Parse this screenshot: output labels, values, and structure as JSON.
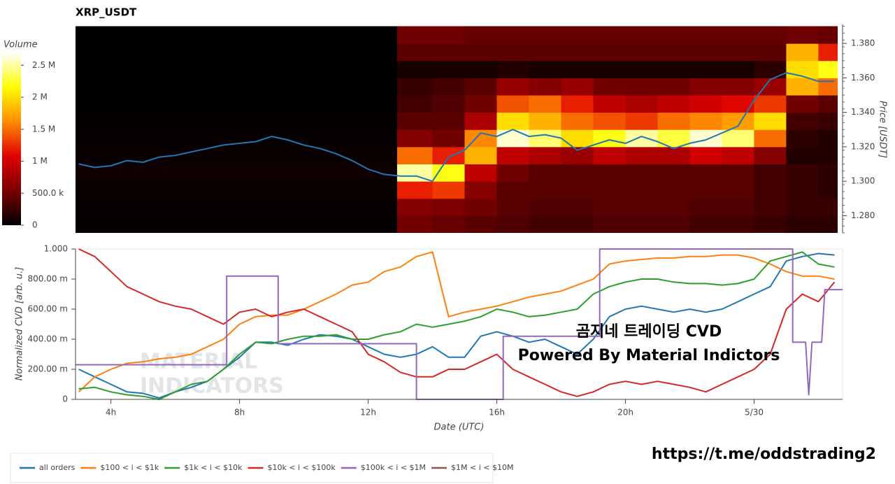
{
  "chart_data": [
    {
      "type": "heatmap",
      "title": "XRP_USDT",
      "y_label": "Price [USDT]",
      "xlim": [
        2.9,
        26.6
      ],
      "ylim": [
        1.27,
        1.391
      ],
      "yticks": [
        {
          "value": 1.28,
          "label": "1.280"
        },
        {
          "value": 1.3,
          "label": "1.300"
        },
        {
          "value": 1.32,
          "label": "1.320"
        },
        {
          "value": 1.34,
          "label": "1.340"
        },
        {
          "value": 1.36,
          "label": "1.360"
        },
        {
          "value": 1.38,
          "label": "1.380"
        }
      ],
      "x_edges": [
        2.9,
        12.9,
        14,
        15,
        16,
        17,
        18,
        19,
        20,
        21,
        22,
        23,
        24,
        25,
        26,
        26.6
      ],
      "y_edges": [
        1.27,
        1.28,
        1.29,
        1.3,
        1.31,
        1.32,
        1.33,
        1.34,
        1.35,
        1.36,
        1.37,
        1.38,
        1.39
      ],
      "z": [
        [
          20000,
          500000,
          450000,
          400000,
          350000,
          300000,
          300000,
          350000,
          350000,
          350000,
          300000,
          300000,
          250000,
          200000,
          200000
        ],
        [
          30000,
          600000,
          550000,
          500000,
          400000,
          350000,
          350000,
          400000,
          400000,
          400000,
          350000,
          350000,
          300000,
          250000,
          250000
        ],
        [
          40000,
          1200000,
          1300000,
          600000,
          400000,
          400000,
          400000,
          400000,
          400000,
          400000,
          400000,
          400000,
          300000,
          250000,
          200000
        ],
        [
          60000,
          2500000,
          2200000,
          900000,
          500000,
          400000,
          400000,
          400000,
          400000,
          400000,
          400000,
          400000,
          300000,
          250000,
          200000
        ],
        [
          50000,
          1500000,
          1200000,
          1800000,
          900000,
          800000,
          700000,
          900000,
          800000,
          800000,
          1000000,
          900000,
          600000,
          150000,
          150000
        ],
        [
          30000,
          600000,
          500000,
          1600000,
          2600000,
          2400000,
          2000000,
          2200000,
          2500000,
          2300000,
          2600000,
          2400000,
          1500000,
          200000,
          150000
        ],
        [
          20000,
          400000,
          400000,
          800000,
          2000000,
          1800000,
          1500000,
          1400000,
          1300000,
          1500000,
          1600000,
          1700000,
          2000000,
          300000,
          250000
        ],
        [
          10000,
          300000,
          350000,
          500000,
          1400000,
          1500000,
          1200000,
          900000,
          800000,
          900000,
          1000000,
          1100000,
          1300000,
          500000,
          400000
        ],
        [
          10000,
          250000,
          300000,
          400000,
          700000,
          600000,
          700000,
          500000,
          500000,
          500000,
          600000,
          600000,
          700000,
          1800000,
          1500000
        ],
        [
          10000,
          100000,
          100000,
          100000,
          150000,
          100000,
          100000,
          100000,
          100000,
          100000,
          100000,
          100000,
          200000,
          2000000,
          2200000
        ],
        [
          10000,
          400000,
          400000,
          400000,
          400000,
          400000,
          400000,
          400000,
          400000,
          400000,
          400000,
          400000,
          400000,
          1800000,
          1200000
        ],
        [
          10000,
          500000,
          500000,
          450000,
          450000,
          450000,
          450000,
          450000,
          450000,
          450000,
          450000,
          450000,
          450000,
          500000,
          450000
        ]
      ],
      "colorbar": {
        "title": "Volume",
        "lim": [
          0,
          2700000
        ],
        "colors": [
          "#000000",
          "#7a0000",
          "#e00000",
          "#ff8c00",
          "#ffff00",
          "#ffffff"
        ],
        "ticks": [
          0,
          {
            "value": 500000,
            "label": "500.0 k"
          },
          {
            "value": 1000000,
            "label": "1 M"
          },
          {
            "value": 1500000,
            "label": "1.5 M"
          },
          {
            "value": 2000000,
            "label": "2 M"
          },
          {
            "value": 2500000,
            "label": "2.5 M"
          }
        ]
      },
      "x": [
        3,
        3.5,
        4,
        4.5,
        5,
        5.5,
        6,
        6.5,
        7,
        7.5,
        8,
        8.5,
        9,
        9.5,
        10,
        10.5,
        11,
        11.5,
        12,
        12.5,
        13,
        13.5,
        14,
        14.5,
        15,
        15.5,
        16,
        16.5,
        17,
        17.5,
        18,
        18.5,
        19,
        19.5,
        20,
        20.5,
        21,
        21.5,
        22,
        22.5,
        23,
        23.5,
        24,
        24.5,
        25,
        25.5,
        26,
        26.5
      ],
      "price": {
        "color": "#1f77b4",
        "values": [
          1.31,
          1.308,
          1.309,
          1.312,
          1.311,
          1.314,
          1.315,
          1.317,
          1.319,
          1.321,
          1.322,
          1.323,
          1.326,
          1.324,
          1.321,
          1.319,
          1.316,
          1.312,
          1.307,
          1.304,
          1.303,
          1.303,
          1.3,
          1.314,
          1.318,
          1.328,
          1.326,
          1.33,
          1.326,
          1.327,
          1.325,
          1.318,
          1.321,
          1.324,
          1.322,
          1.326,
          1.323,
          1.319,
          1.322,
          1.324,
          1.328,
          1.332,
          1.347,
          1.359,
          1.363,
          1.361,
          1.358,
          1.358
        ]
      }
    },
    {
      "type": "line",
      "x_label": "Date (UTC)",
      "y_label": "Normalized CVD [arb. u.]",
      "xlim": [
        2.9,
        26.75
      ],
      "ylim": [
        0,
        1
      ],
      "xticks": [
        {
          "value": 4,
          "label": "4h"
        },
        {
          "value": 8,
          "label": "8h"
        },
        {
          "value": 12,
          "label": "12h"
        },
        {
          "value": 16,
          "label": "16h"
        },
        {
          "value": 20,
          "label": "20h"
        },
        {
          "value": 24,
          "label": "5/30"
        }
      ],
      "yticks": [
        0,
        {
          "value": 0.2,
          "label": "200.00 m"
        },
        {
          "value": 0.4,
          "label": "400.00 m"
        },
        {
          "value": 0.6,
          "label": "600.00 m"
        },
        {
          "value": 0.8,
          "label": "800.00 m"
        },
        {
          "value": 1,
          "label": "1.000"
        }
      ],
      "x": [
        3,
        3.5,
        4,
        4.5,
        5,
        5.5,
        6,
        6.5,
        7,
        7.5,
        8,
        8.5,
        9,
        9.5,
        10,
        10.5,
        11,
        11.5,
        12,
        12.5,
        13,
        13.5,
        14,
        14.5,
        15,
        15.5,
        16,
        16.5,
        17,
        17.5,
        18,
        18.5,
        19,
        19.5,
        20,
        20.5,
        21,
        21.5,
        22,
        22.5,
        23,
        23.5,
        24,
        24.5,
        25,
        25.5,
        26,
        26.5
      ],
      "legend": "bottom",
      "series": [
        {
          "name": "all orders",
          "color": "#1f77b4",
          "values": [
            0.2,
            0.15,
            0.1,
            0.05,
            0.04,
            0.01,
            0.05,
            0.08,
            0.12,
            0.2,
            0.28,
            0.38,
            0.38,
            0.36,
            0.4,
            0.43,
            0.42,
            0.4,
            0.35,
            0.3,
            0.28,
            0.3,
            0.35,
            0.28,
            0.28,
            0.42,
            0.45,
            0.42,
            0.38,
            0.4,
            0.35,
            0.3,
            0.4,
            0.55,
            0.6,
            0.62,
            0.6,
            0.58,
            0.6,
            0.58,
            0.6,
            0.65,
            0.7,
            0.75,
            0.92,
            0.95,
            0.97,
            0.96
          ]
        },
        {
          "name": "$100 < i < $1k",
          "color": "#ff7f0e",
          "values": [
            0.05,
            0.15,
            0.2,
            0.24,
            0.25,
            0.27,
            0.28,
            0.3,
            0.35,
            0.4,
            0.5,
            0.55,
            0.56,
            0.56,
            0.6,
            0.65,
            0.7,
            0.76,
            0.78,
            0.85,
            0.88,
            0.95,
            0.98,
            0.55,
            0.58,
            0.6,
            0.62,
            0.65,
            0.68,
            0.7,
            0.72,
            0.76,
            0.8,
            0.9,
            0.92,
            0.93,
            0.94,
            0.94,
            0.95,
            0.95,
            0.96,
            0.96,
            0.94,
            0.9,
            0.85,
            0.82,
            0.82,
            0.8
          ]
        },
        {
          "name": "$1k < i < $10k",
          "color": "#2ca02c",
          "values": [
            0.07,
            0.08,
            0.05,
            0.03,
            0.02,
            0,
            0.05,
            0.1,
            0.12,
            0.2,
            0.3,
            0.38,
            0.37,
            0.4,
            0.42,
            0.42,
            0.43,
            0.4,
            0.4,
            0.43,
            0.45,
            0.5,
            0.48,
            0.5,
            0.52,
            0.55,
            0.6,
            0.58,
            0.55,
            0.56,
            0.58,
            0.6,
            0.7,
            0.75,
            0.78,
            0.8,
            0.8,
            0.78,
            0.77,
            0.77,
            0.76,
            0.77,
            0.8,
            0.92,
            0.95,
            0.98,
            0.9,
            0.88
          ]
        },
        {
          "name": "$10k < i < $100k",
          "color": "#d62728",
          "values": [
            1,
            0.95,
            0.85,
            0.75,
            0.7,
            0.65,
            0.62,
            0.6,
            0.55,
            0.5,
            0.58,
            0.6,
            0.55,
            0.58,
            0.6,
            0.55,
            0.5,
            0.45,
            0.3,
            0.25,
            0.18,
            0.15,
            0.15,
            0.2,
            0.2,
            0.25,
            0.3,
            0.2,
            0.15,
            0.1,
            0.05,
            0.02,
            0.05,
            0.1,
            0.12,
            0.1,
            0.12,
            0.1,
            0.08,
            0.05,
            0.1,
            0.15,
            0.2,
            0.3,
            0.6,
            0.7,
            0.65,
            0.78
          ]
        },
        {
          "name": "$100k < i < $1M",
          "color": "#9467bd",
          "x": [
            2.9,
            7.6,
            7.6,
            9.2,
            9.2,
            13.5,
            13.5,
            16.2,
            16.2,
            19.2,
            19.2,
            25.2,
            25.2,
            25.6,
            25.7,
            25.8,
            26.1,
            26.2,
            26.6,
            26.75
          ],
          "values": [
            0.23,
            0.23,
            0.82,
            0.82,
            0.37,
            0.37,
            0,
            0,
            0.42,
            0.42,
            1,
            1,
            0.38,
            0.38,
            0.03,
            0.38,
            0.38,
            0.73,
            0.73,
            0.73
          ]
        },
        {
          "name": "$1M < i < $10M",
          "color": "#8c564b",
          "values": [
            null,
            null,
            null,
            null,
            null,
            null,
            null,
            null,
            null,
            null,
            null,
            null,
            null,
            null,
            null,
            null,
            null,
            null,
            null,
            null,
            null,
            null,
            null,
            null,
            null,
            null,
            null,
            null,
            null,
            null,
            null,
            null,
            null,
            null,
            null,
            null,
            null,
            null,
            null,
            null,
            null,
            null,
            null,
            null,
            null,
            null,
            null,
            null
          ]
        }
      ],
      "watermark": [
        "MATERIAL",
        "INDICATORS"
      ],
      "annotations": [
        "곰지네 트레이딩 CVD",
        "Powered By Material Indictors",
        "https://t.me/oddstrading2"
      ]
    }
  ]
}
